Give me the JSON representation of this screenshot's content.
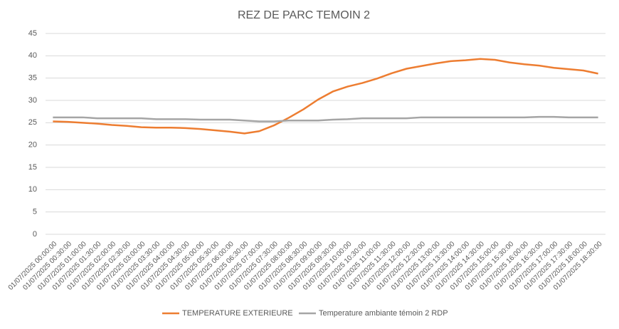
{
  "chart_data": {
    "type": "line",
    "title": "REZ DE PARC TEMOIN 2",
    "categories": [
      "01/07/2025 00:00:00",
      "01/07/2025 00:30:00",
      "01/07/2025 01:00:00",
      "01/07/2025 01:30:00",
      "01/07/2025 02:00:00",
      "01/07/2025 02:30:00",
      "01/07/2025 03:00:00",
      "01/07/2025 03:30:00",
      "01/07/2025 04:00:00",
      "01/07/2025 04:30:00",
      "01/07/2025 05:00:00",
      "01/07/2025 05:30:00",
      "01/07/2025 06:00:00",
      "01/07/2025 06:30:00",
      "01/07/2025 07:00:00",
      "01/07/2025 07:30:00",
      "01/07/2025 08:00:00",
      "01/07/2025 08:30:00",
      "01/07/2025 09:00:00",
      "01/07/2025 09:30:00",
      "01/07/2025 10:00:00",
      "01/07/2025 10:30:00",
      "01/07/2025 11:00:00",
      "01/07/2025 11:30:00",
      "01/07/2025 12:00:00",
      "01/07/2025 12:30:00",
      "01/07/2025 13:00:00",
      "01/07/2025 13:30:00",
      "01/07/2025 14:00:00",
      "01/07/2025 14:30:00",
      "01/07/2025 15:00:00",
      "01/07/2025 15:30:00",
      "01/07/2025 16:00:00",
      "01/07/2025 16:30:00",
      "01/07/2025 17:00:00",
      "01/07/2025 17:30:00",
      "01/07/2025 18:00:00",
      "01/07/2025 18:30:00"
    ],
    "series": [
      {
        "name": "TEMPERATURE EXTERIEURE",
        "color": "#ed7d31",
        "values": [
          25.3,
          25.2,
          25.0,
          24.8,
          24.5,
          24.3,
          24.0,
          23.9,
          23.9,
          23.8,
          23.6,
          23.3,
          23.0,
          22.6,
          23.1,
          24.4,
          26.1,
          28.0,
          30.2,
          32.0,
          33.1,
          33.9,
          34.9,
          36.1,
          37.1,
          37.7,
          38.3,
          38.8,
          39.0,
          39.3,
          39.1,
          38.5,
          38.1,
          37.8,
          37.3,
          37.0,
          36.7,
          36.0
        ]
      },
      {
        "name": "Temperature ambiante témoin 2 RDP",
        "color": "#a5a5a5",
        "values": [
          26.2,
          26.2,
          26.2,
          26.0,
          26.0,
          26.0,
          26.0,
          25.8,
          25.8,
          25.8,
          25.7,
          25.7,
          25.7,
          25.5,
          25.3,
          25.3,
          25.5,
          25.5,
          25.5,
          25.7,
          25.8,
          26.0,
          26.0,
          26.0,
          26.0,
          26.2,
          26.2,
          26.2,
          26.2,
          26.2,
          26.2,
          26.2,
          26.2,
          26.3,
          26.3,
          26.2,
          26.2,
          26.2
        ]
      }
    ],
    "ylim": [
      0,
      45
    ],
    "yticks": [
      0,
      5,
      10,
      15,
      20,
      25,
      30,
      35,
      40,
      45
    ],
    "grid": true,
    "legend": "bottom"
  }
}
